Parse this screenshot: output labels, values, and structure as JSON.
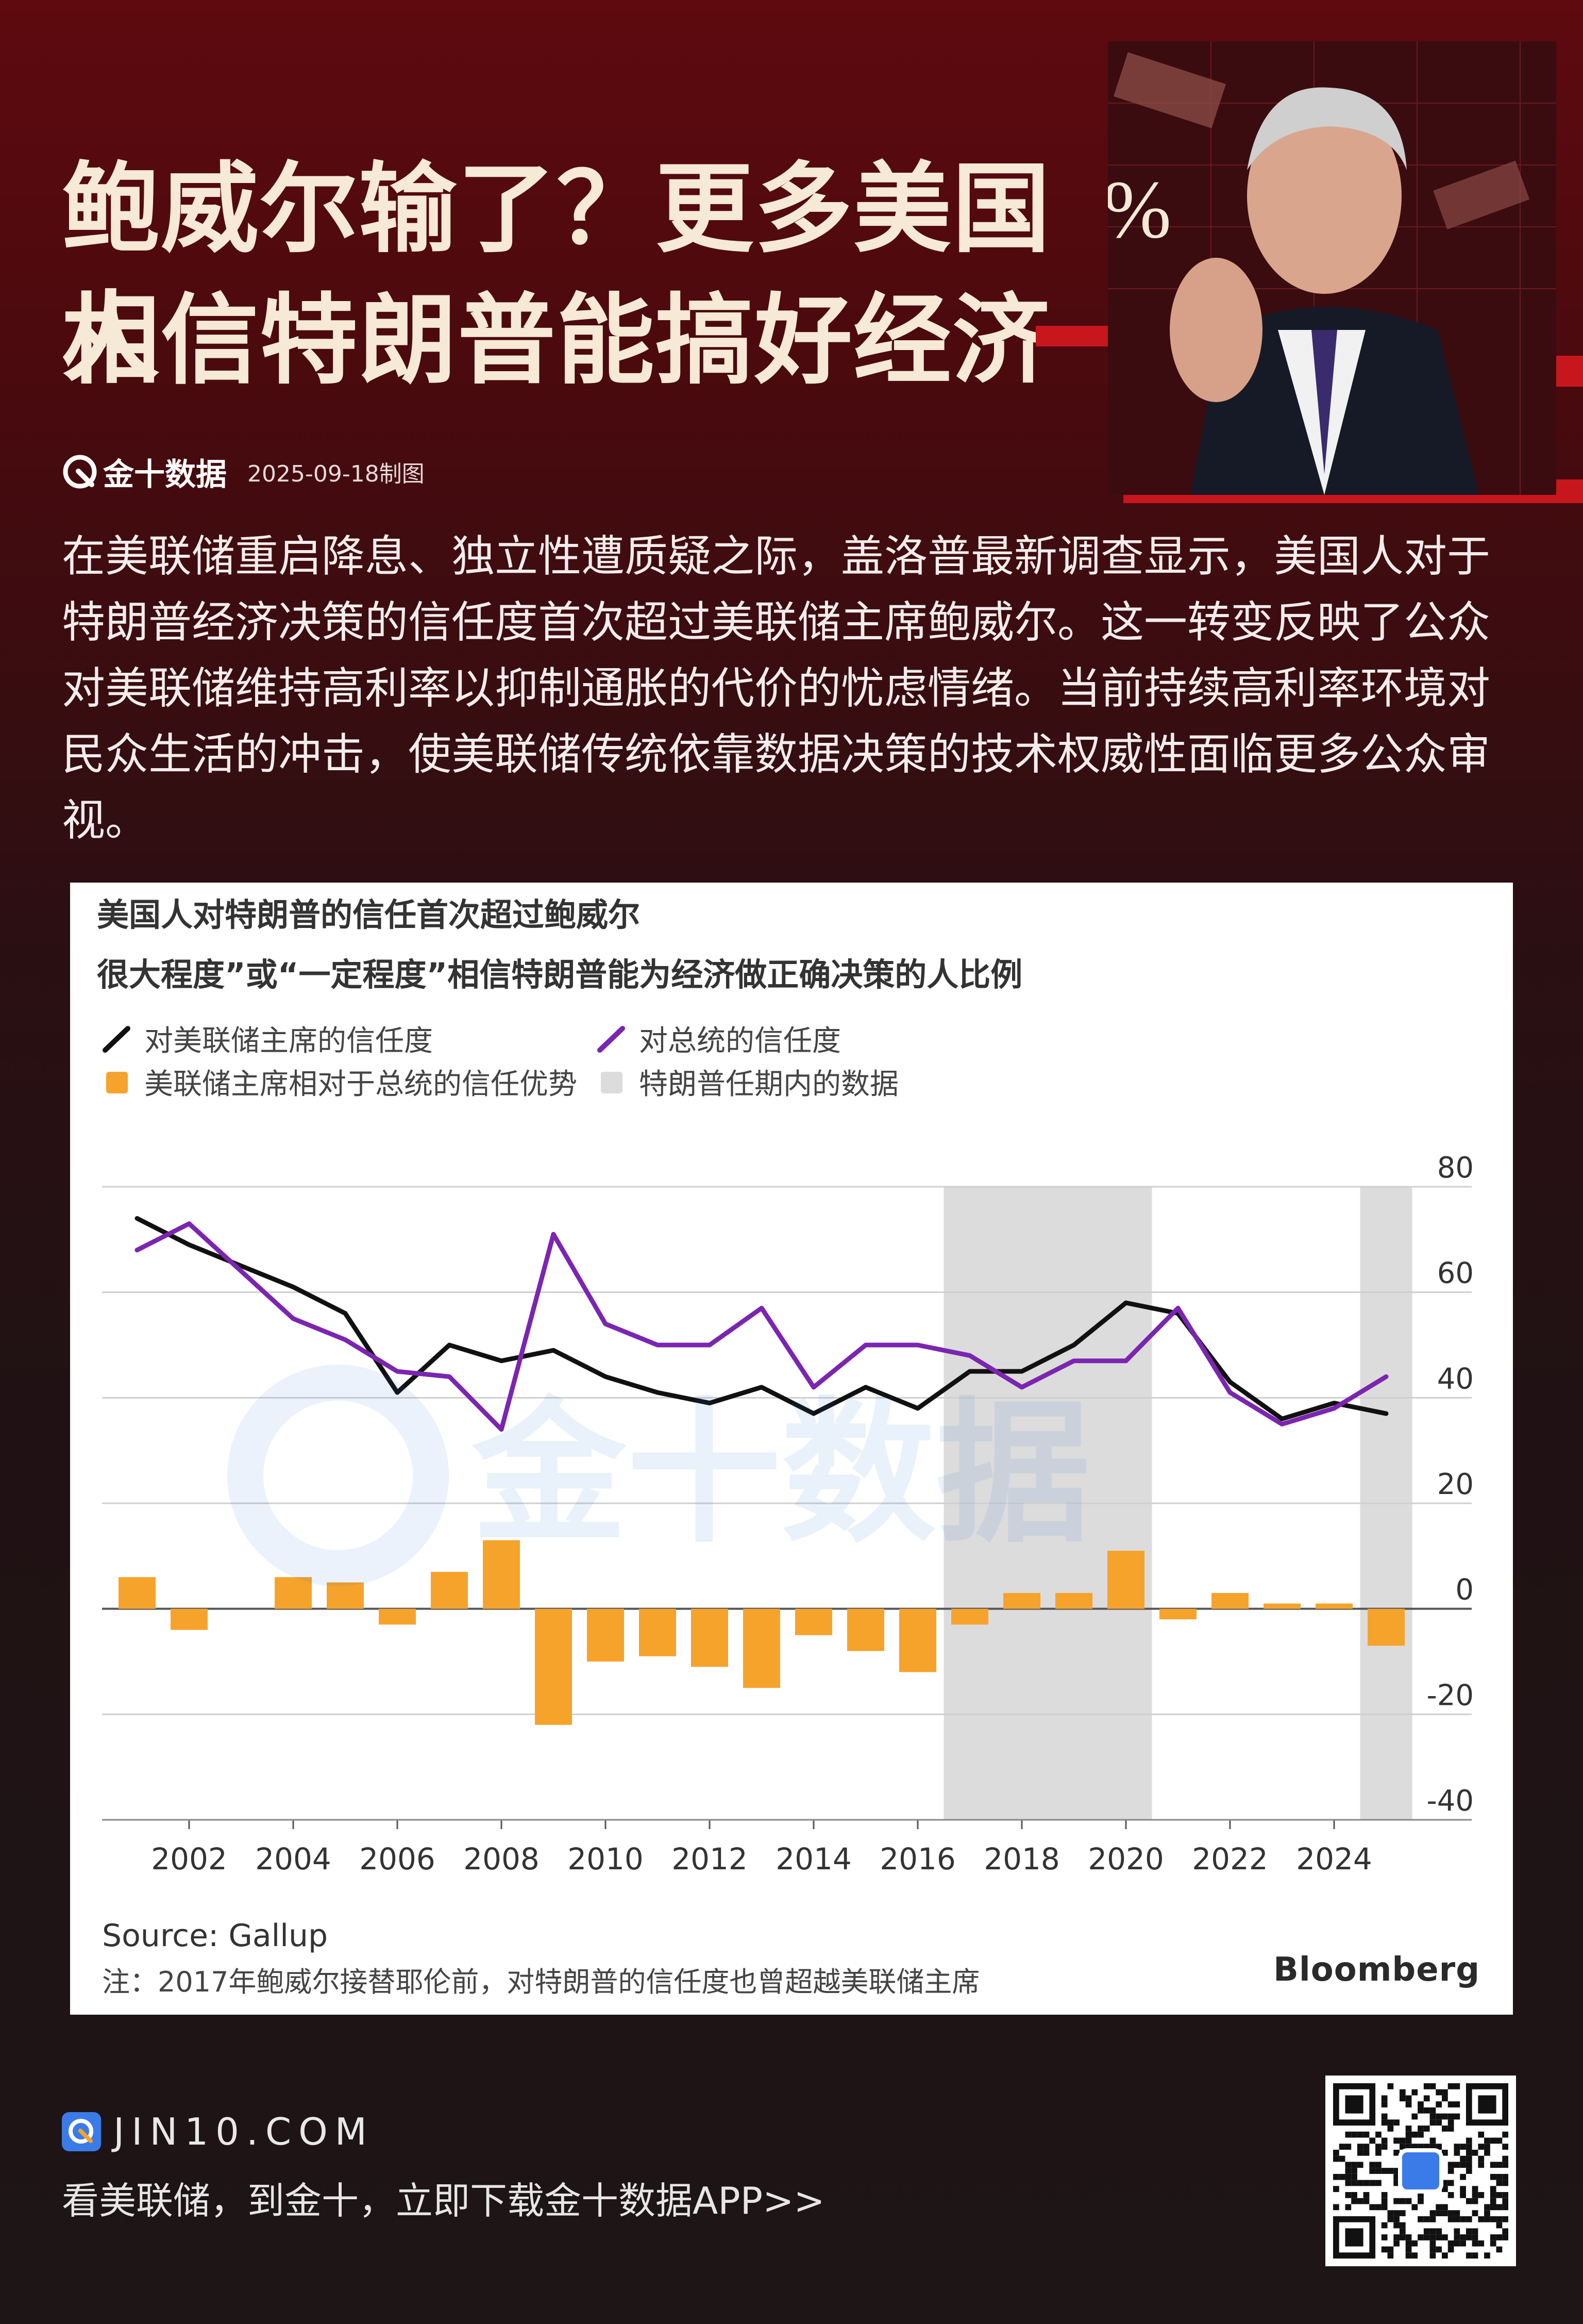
{
  "header": {
    "title_line1": "鲍威尔输了？更多美国人",
    "title_line2": "相信特朗普能搞好经济",
    "brand": "金十数据",
    "date": "2025-09-18制图"
  },
  "intro": "在美联储重启降息、独立性遭质疑之际，盖洛普最新调查显示，美国人对于特朗普经济决策的信任度首次超过美联储主席鲍威尔。这一转变反映了公众对美联储维持高利率以抑制通胀的代价的忧虑情绪。当前持续高利率环境对民众生活的冲击，使美联储传统依靠数据决策的技术权威性面临更多公众审视。",
  "chart_data": {
    "type": "line",
    "title": "美国人对特朗普的信任首次超过鲍威尔",
    "subtitle": "很大程度”或“一定程度”相信特朗普能为经济做正确决策的人比例",
    "ylim": [
      -40,
      80
    ],
    "yticks": [
      "80",
      "60",
      "40",
      "20",
      "0",
      "-20",
      "-40"
    ],
    "xticks": [
      "2002",
      "2004",
      "2006",
      "2008",
      "2010",
      "2012",
      "2014",
      "2016",
      "2018",
      "2020",
      "2022",
      "2024"
    ],
    "years": [
      2001,
      2002,
      2003,
      2004,
      2005,
      2006,
      2007,
      2008,
      2009,
      2010,
      2011,
      2012,
      2013,
      2014,
      2015,
      2016,
      2017,
      2018,
      2019,
      2020,
      2021,
      2022,
      2023,
      2024,
      2025
    ],
    "series": [
      {
        "name": "对美联储主席的信任度",
        "color": "#111111",
        "values": [
          74,
          69,
          65,
          61,
          56,
          41,
          50,
          47,
          49,
          44,
          41,
          39,
          42,
          37,
          42,
          38,
          45,
          45,
          50,
          58,
          56,
          43,
          36,
          39,
          37
        ]
      },
      {
        "name": "对总统的信任度",
        "color": "#7b25b0",
        "values": [
          68,
          73,
          64,
          55,
          51,
          45,
          44,
          34,
          71,
          54,
          50,
          50,
          57,
          42,
          50,
          50,
          48,
          42,
          47,
          47,
          57,
          41,
          35,
          38,
          44
        ]
      },
      {
        "name": "美联储主席相对于总统的信任优势",
        "color": "#f6a32c",
        "kind": "bar",
        "values": [
          6,
          -4,
          null,
          6,
          5,
          -3,
          7,
          13,
          -22,
          -10,
          -9,
          -11,
          -15,
          -5,
          -8,
          -12,
          -3,
          3,
          3,
          11,
          -2,
          3,
          1,
          1,
          -7
        ]
      }
    ],
    "shaded_label": "特朗普任期内的数据",
    "shaded_periods": [
      [
        2017,
        2020.5
      ],
      [
        2025,
        2025.5
      ]
    ],
    "source": "Source: Gallup",
    "note": "注：2017年鲍威尔接替耶伦前，对特朗普的信任度也曾超越美联储主席",
    "credit": "Bloomberg"
  },
  "footer": {
    "site": "JIN10.COM",
    "tagline": "看美联储，到金十，立即下载金十数据APP>>"
  },
  "colors": {
    "accent_red": "#c8161d",
    "title_cream": "#f6e9d6",
    "bar_orange": "#f6a32c",
    "line_purple": "#7b25b0",
    "shade_gray": "#dcdcdc"
  },
  "icons": [
    "jin10-logo-icon",
    "qr-code-icon"
  ]
}
